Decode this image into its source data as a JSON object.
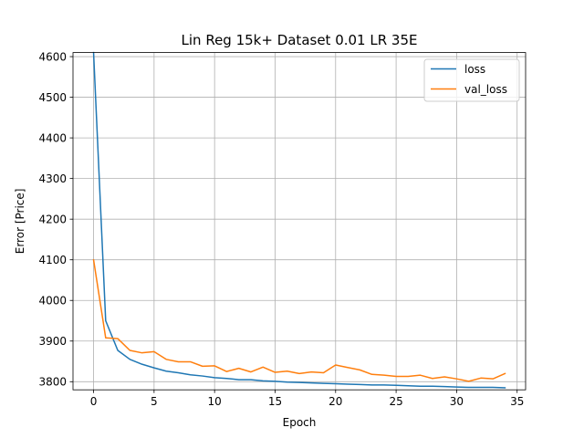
{
  "chart_data": {
    "type": "line",
    "title": "Lin Reg 15k+ Dataset 0.01 LR 35E",
    "xlabel": "Epoch",
    "ylabel": "Error [Price]",
    "xlim": [
      -1.7,
      35.7
    ],
    "ylim": [
      3780,
      4610
    ],
    "xticks": [
      0,
      5,
      10,
      15,
      20,
      25,
      30,
      35
    ],
    "yticks": [
      3800,
      3900,
      4000,
      4100,
      4200,
      4300,
      4400,
      4500,
      4600
    ],
    "grid": true,
    "legend_position": "top-right",
    "x": [
      0,
      1,
      2,
      3,
      4,
      5,
      6,
      7,
      8,
      9,
      10,
      11,
      12,
      13,
      14,
      15,
      16,
      17,
      18,
      19,
      20,
      21,
      22,
      23,
      24,
      25,
      26,
      27,
      28,
      29,
      30,
      31,
      32,
      33,
      34
    ],
    "series": [
      {
        "name": "loss",
        "color": "#1f77b4",
        "values": [
          4610,
          3950,
          3877,
          3855,
          3843,
          3834,
          3826,
          3822,
          3817,
          3814,
          3810,
          3808,
          3805,
          3805,
          3802,
          3801,
          3799,
          3798,
          3797,
          3796,
          3795,
          3794,
          3793,
          3792,
          3792,
          3791,
          3790,
          3789,
          3789,
          3788,
          3787,
          3786,
          3786,
          3786,
          3785
        ]
      },
      {
        "name": "val_loss",
        "color": "#ff7f0e",
        "values": [
          4100,
          3908,
          3906,
          3877,
          3871,
          3874,
          3855,
          3849,
          3849,
          3838,
          3839,
          3825,
          3833,
          3824,
          3836,
          3823,
          3826,
          3820,
          3824,
          3822,
          3841,
          3835,
          3829,
          3818,
          3816,
          3813,
          3813,
          3816,
          3808,
          3812,
          3807,
          3801,
          3809,
          3807,
          3820
        ]
      }
    ]
  }
}
